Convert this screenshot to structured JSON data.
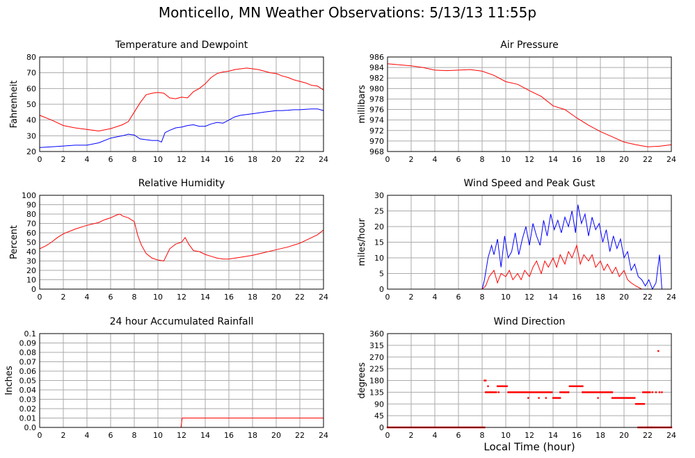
{
  "title": "Monticello, MN Weather Observations: 5/13/13 11:55p",
  "xlabel": "Local Time (hour)",
  "chart_data": [
    {
      "type": "line",
      "title": "Temperature and Dewpoint",
      "xlabel": "",
      "ylabel": "Fahrenheit",
      "xlim": [
        0,
        24
      ],
      "ylim": [
        20,
        80
      ],
      "xticks": [
        0,
        2,
        4,
        6,
        8,
        10,
        12,
        14,
        16,
        18,
        20,
        22,
        24
      ],
      "yticks": [
        "20",
        "30",
        "40",
        "50",
        "60",
        "70",
        "80"
      ],
      "grid": true,
      "series": [
        {
          "color": "#ff0000",
          "x": [
            0,
            1,
            2,
            3,
            4,
            5,
            6,
            7,
            7.5,
            8,
            8.5,
            9,
            9.5,
            10,
            10.5,
            11,
            11.5,
            12,
            12.5,
            13,
            13.5,
            14,
            14.5,
            15,
            15.5,
            16,
            16.5,
            17,
            17.5,
            18,
            18.5,
            19,
            19.5,
            20,
            20.5,
            21,
            21.5,
            22,
            22.5,
            23,
            23.5,
            24
          ],
          "y": [
            43,
            40,
            36.5,
            35,
            34,
            33,
            34.5,
            37,
            39,
            45,
            51,
            56,
            57,
            57.5,
            57,
            54,
            53.5,
            54.5,
            54,
            58,
            60,
            63,
            67,
            69.5,
            70.5,
            71,
            72,
            72.5,
            73,
            72.5,
            72,
            71,
            70,
            69.5,
            68,
            67,
            65.5,
            64.5,
            63.5,
            62,
            61.5,
            59
          ]
        },
        {
          "color": "#0000ff",
          "x": [
            0,
            1,
            2,
            3,
            4,
            5,
            6,
            7,
            7.5,
            8,
            8.5,
            9,
            9.5,
            10,
            10.3,
            10.6,
            11,
            11.5,
            12,
            12.5,
            13,
            13.5,
            14,
            14.5,
            15,
            15.5,
            16,
            16.5,
            17,
            17.5,
            18,
            18.5,
            19,
            19.5,
            20,
            20.5,
            21,
            21.5,
            22,
            22.5,
            23,
            23.5,
            24
          ],
          "y": [
            22.5,
            23,
            23.5,
            24,
            24,
            25.5,
            28.5,
            30,
            31,
            30.5,
            28,
            27.5,
            27,
            27,
            26,
            32,
            33.5,
            35,
            35.5,
            36.5,
            37,
            36,
            36,
            37.5,
            38.5,
            38,
            40,
            42,
            43,
            43.5,
            44,
            44.5,
            45,
            45.5,
            46,
            46,
            46.2,
            46.5,
            46.5,
            46.8,
            47,
            47,
            46
          ]
        }
      ]
    },
    {
      "type": "line",
      "title": "Air Pressure",
      "xlabel": "",
      "ylabel": "millibars",
      "xlim": [
        0,
        24
      ],
      "ylim": [
        968,
        986
      ],
      "xticks": [
        0,
        2,
        4,
        6,
        8,
        10,
        12,
        14,
        16,
        18,
        20,
        22,
        24
      ],
      "yticks": [
        "968",
        "970",
        "972",
        "974",
        "976",
        "978",
        "980",
        "982",
        "984",
        "986"
      ],
      "grid": true,
      "series": [
        {
          "color": "#ff0000",
          "x": [
            0,
            1,
            2,
            3,
            4,
            5,
            6,
            7,
            8,
            9,
            10,
            11,
            12,
            13,
            14,
            15,
            16,
            17,
            18,
            19,
            20,
            21,
            22,
            23,
            24
          ],
          "y": [
            984.7,
            984.5,
            984.3,
            984,
            983.5,
            983.4,
            983.5,
            983.6,
            983.3,
            982.5,
            981.3,
            980.8,
            979.6,
            978.5,
            976.7,
            976,
            974.4,
            973,
            971.8,
            970.8,
            969.8,
            969.3,
            968.9,
            969,
            969.3
          ]
        }
      ]
    },
    {
      "type": "line",
      "title": "Relative Humidity",
      "xlabel": "",
      "ylabel": "Percent",
      "xlim": [
        0,
        24
      ],
      "ylim": [
        0,
        100
      ],
      "xticks": [
        0,
        2,
        4,
        6,
        8,
        10,
        12,
        14,
        16,
        18,
        20,
        22,
        24
      ],
      "yticks": [
        "0",
        "10",
        "20",
        "30",
        "40",
        "50",
        "60",
        "70",
        "80",
        "90",
        "100"
      ],
      "grid": true,
      "series": [
        {
          "color": "#ff0000",
          "x": [
            0,
            0.5,
            1,
            1.5,
            2,
            3,
            4,
            5,
            5.5,
            6,
            6.5,
            6.8,
            7,
            7.5,
            8,
            8.3,
            8.6,
            9,
            9.5,
            10,
            10.5,
            11,
            11.5,
            12,
            12.3,
            12.6,
            13,
            13.5,
            14,
            14.5,
            15,
            15.5,
            16,
            17,
            18,
            19,
            20,
            21,
            22,
            22.5,
            23,
            23.5,
            24
          ],
          "y": [
            43,
            46,
            50,
            55,
            59,
            64,
            68,
            71,
            74,
            76,
            79,
            80,
            78,
            76,
            72,
            57,
            47,
            38,
            33,
            31,
            30,
            43,
            48,
            50,
            55,
            48,
            41,
            40,
            37,
            35,
            33,
            32,
            32,
            34,
            36,
            39,
            42,
            45,
            49,
            52,
            55,
            58,
            63
          ]
        }
      ]
    },
    {
      "type": "line",
      "title": "Wind Speed and Peak Gust",
      "xlabel": "",
      "ylabel": "miles/hour",
      "xlim": [
        0,
        24
      ],
      "ylim": [
        0,
        30
      ],
      "xticks": [
        0,
        2,
        4,
        6,
        8,
        10,
        12,
        14,
        16,
        18,
        20,
        22,
        24
      ],
      "yticks": [
        "0",
        "5",
        "10",
        "15",
        "20",
        "25",
        "30"
      ],
      "grid": true,
      "series": [
        {
          "color": "#0000ff",
          "x": [
            0,
            8,
            8.2,
            8.5,
            8.8,
            9,
            9.3,
            9.6,
            9.9,
            10.2,
            10.5,
            10.8,
            11.1,
            11.4,
            11.7,
            12,
            12.3,
            12.6,
            12.9,
            13.2,
            13.5,
            13.8,
            14.1,
            14.4,
            14.7,
            15,
            15.3,
            15.6,
            15.9,
            16.1,
            16.4,
            16.7,
            17,
            17.3,
            17.6,
            17.9,
            18.2,
            18.5,
            18.8,
            19.1,
            19.4,
            19.7,
            20,
            20.3,
            20.6,
            20.9,
            21.2,
            21.5,
            21.8,
            22.1,
            22.4,
            22.7,
            23,
            23.2,
            23.5,
            24
          ],
          "y": [
            0,
            0,
            3,
            10,
            14,
            11,
            16,
            7,
            17,
            10,
            12,
            18,
            11,
            16,
            20,
            14,
            21,
            17,
            14,
            22,
            17,
            24,
            19,
            22,
            18,
            23,
            20,
            25,
            18,
            27,
            21,
            24,
            17,
            23,
            19,
            21,
            15,
            19,
            12,
            17,
            13,
            16,
            10,
            12,
            6,
            8,
            4,
            3,
            1,
            3,
            0,
            2,
            11,
            0,
            0,
            0
          ]
        },
        {
          "color": "#ff0000",
          "x": [
            0,
            8,
            8.3,
            8.6,
            9,
            9.3,
            9.6,
            10,
            10.3,
            10.6,
            11,
            11.3,
            11.6,
            12,
            12.3,
            12.6,
            13,
            13.3,
            13.6,
            14,
            14.3,
            14.6,
            15,
            15.3,
            15.6,
            16,
            16.3,
            16.6,
            17,
            17.3,
            17.6,
            18,
            18.3,
            18.6,
            19,
            19.3,
            19.6,
            20,
            20.3,
            20.6,
            21,
            21.5,
            22,
            22.5,
            23,
            24
          ],
          "y": [
            0,
            0,
            1,
            4,
            6,
            2,
            5,
            4,
            6,
            3,
            5,
            3,
            6,
            4,
            7,
            9,
            5,
            9,
            7,
            10,
            7,
            11,
            8,
            12,
            10,
            14,
            8,
            11,
            9,
            11,
            7,
            9,
            6,
            8,
            5,
            7,
            4,
            6,
            3,
            2,
            1,
            0,
            0,
            0,
            0,
            0
          ]
        }
      ]
    },
    {
      "type": "line",
      "title": "24 hour Accumulated Rainfall",
      "xlabel": "",
      "ylabel": "Inches",
      "xlim": [
        0,
        24
      ],
      "ylim": [
        0,
        0.1
      ],
      "xticks": [
        0,
        2,
        4,
        6,
        8,
        10,
        12,
        14,
        16,
        18,
        20,
        22,
        24
      ],
      "yticks": [
        "0.0",
        "0.01",
        "0.02",
        "0.03",
        "0.04",
        "0.05",
        "0.06",
        "0.07",
        "0.08",
        "0.09",
        "0.1"
      ],
      "grid": true,
      "series": [
        {
          "color": "#ff0000",
          "x": [
            0,
            11.95,
            12.05,
            24
          ],
          "y": [
            0,
            0,
            0.01,
            0.01
          ]
        }
      ]
    },
    {
      "type": "scatter",
      "title": "Wind Direction",
      "xlabel": "Local Time (hour)",
      "ylabel": "degrees",
      "xlim": [
        0,
        24
      ],
      "ylim": [
        0,
        360
      ],
      "xticks": [
        0,
        2,
        4,
        6,
        8,
        10,
        12,
        14,
        16,
        18,
        20,
        22,
        24
      ],
      "yticks": [
        "0",
        "45",
        "90",
        "135",
        "180",
        "225",
        "270",
        "315",
        "360"
      ],
      "grid": true,
      "series": [
        {
          "color": "#ff0000",
          "segments": [
            {
              "from": 0,
              "to": 8.2,
              "y": 0
            },
            {
              "from": 8.3,
              "to": 9.2,
              "y": 135
            },
            {
              "from": 9.3,
              "to": 10.1,
              "y": 158
            },
            {
              "from": 10.2,
              "to": 13.9,
              "y": 135
            },
            {
              "from": 14.0,
              "to": 14.6,
              "y": 113
            },
            {
              "from": 14.6,
              "to": 15.3,
              "y": 135
            },
            {
              "from": 15.4,
              "to": 16.5,
              "y": 158
            },
            {
              "from": 16.5,
              "to": 19.0,
              "y": 135
            },
            {
              "from": 19.0,
              "to": 20.9,
              "y": 113
            },
            {
              "from": 21.0,
              "to": 21.6,
              "y": 90
            },
            {
              "from": 21.6,
              "to": 22.2,
              "y": 135
            },
            {
              "from": 21.2,
              "to": 23.0,
              "y": 0
            },
            {
              "from": 23.1,
              "to": 24,
              "y": 0
            }
          ],
          "points": [
            [
              8.2,
              180
            ],
            [
              8.3,
              180
            ],
            [
              8.5,
              158
            ],
            [
              9.4,
              135
            ],
            [
              11.9,
              113
            ],
            [
              12.8,
              113
            ],
            [
              13.4,
              113
            ],
            [
              15.3,
              135
            ],
            [
              16.5,
              135
            ],
            [
              17.8,
              113
            ],
            [
              18.9,
              135
            ],
            [
              21.2,
              90
            ],
            [
              21.7,
              90
            ],
            [
              22.4,
              135
            ],
            [
              22.7,
              135
            ],
            [
              23.0,
              135
            ],
            [
              23.2,
              135
            ],
            [
              22.9,
              293
            ],
            [
              22.0,
              0
            ],
            [
              22.3,
              0
            ]
          ]
        }
      ]
    }
  ]
}
